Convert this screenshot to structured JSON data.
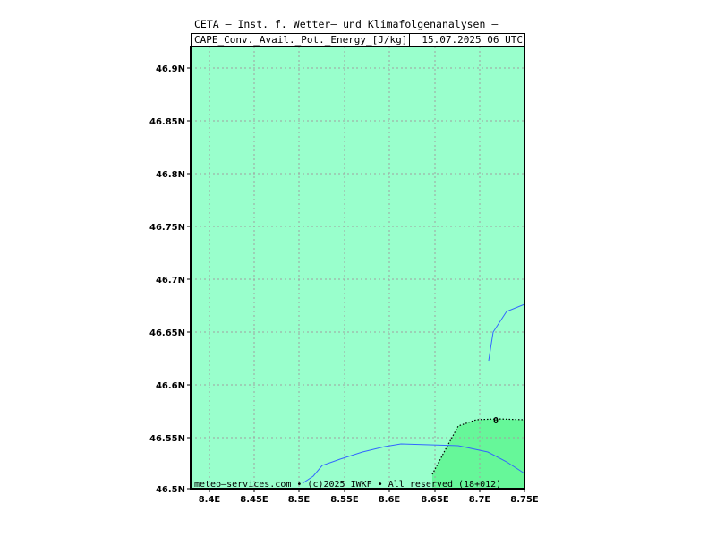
{
  "header": {
    "title": "CETA — Inst. f. Wetter— und Klimafolgenanalysen —",
    "field": "CAPE_Conv._Avail._Pot._Energy_[J/kg]",
    "valid_time": "15.07.2025 06 UTC"
  },
  "map": {
    "lat_labels": [
      "46.9N",
      "46.85N",
      "46.8N",
      "46.75N",
      "46.7N",
      "46.65N",
      "46.6N",
      "46.55N",
      "46.5N"
    ],
    "lon_labels": [
      "8.4E",
      "8.45E",
      "8.5E",
      "8.55E",
      "8.6E",
      "8.65E",
      "8.7E",
      "8.75E"
    ],
    "contour_label": "0",
    "colors": {
      "background_fill": "#99ffcc",
      "contour_fill": "#66f799",
      "gridline": "#a0a0a0",
      "coastline": "#3366ff",
      "frame": "#000000"
    }
  },
  "footer": {
    "credit": "meteo—services.com • (c)2025 IWKF • All reserved (18+012)"
  }
}
